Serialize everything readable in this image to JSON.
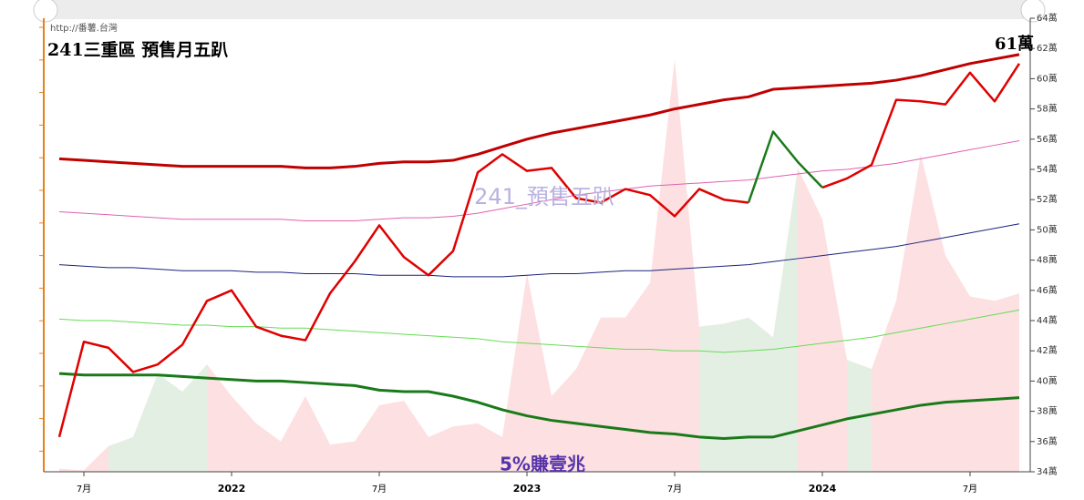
{
  "chart_data": {
    "type": "line",
    "title": "241三重區 預售月五趴",
    "annotations": [
      "http://番薯.台灣",
      "61萬",
      "241_預售五趴",
      "5%賺壹兆"
    ],
    "categories": [
      null,
      "7月",
      null,
      null,
      null,
      null,
      null,
      "2022",
      null,
      null,
      null,
      null,
      null,
      "7月",
      null,
      null,
      null,
      null,
      null,
      "2023",
      null,
      null,
      null,
      null,
      null,
      "7月",
      null,
      null,
      null,
      null,
      null,
      "2024",
      null,
      null,
      null,
      null,
      null,
      "7月",
      null,
      null
    ],
    "ylim": [
      34,
      64
    ],
    "yticks": [
      {
        "value": 34,
        "label": "34萬"
      },
      {
        "value": 36,
        "label": "36萬"
      },
      {
        "value": 38,
        "label": "38萬"
      },
      {
        "value": 40,
        "label": "40萬"
      },
      {
        "value": 42,
        "label": "42萬"
      },
      {
        "value": 44,
        "label": "44萬"
      },
      {
        "value": 46,
        "label": "46萬"
      },
      {
        "value": 48,
        "label": "48萬"
      },
      {
        "value": 50,
        "label": "50萬"
      },
      {
        "value": 52,
        "label": "52萬"
      },
      {
        "value": 54,
        "label": "54萬"
      },
      {
        "value": 56,
        "label": "56萬"
      },
      {
        "value": 58,
        "label": "58萬"
      },
      {
        "value": 60,
        "label": "60萬"
      },
      {
        "value": 62,
        "label": "62萬"
      },
      {
        "value": 64,
        "label": "64萬"
      }
    ],
    "series": [
      {
        "type": "area",
        "color": "#fde0e2",
        "values": [
          34.2,
          34.1,
          35.7,
          null,
          null,
          null,
          41.1,
          39.0,
          37.2,
          36.0,
          39.0,
          35.8,
          36.0,
          38.4,
          38.7,
          36.3,
          37.0,
          37.2,
          36.3,
          47.1,
          39.0,
          40.8,
          44.2,
          44.2,
          46.5,
          61.3,
          43.6,
          null,
          null,
          null,
          54.1,
          50.7,
          41.4,
          40.8,
          45.3,
          55.0,
          48.3,
          45.6,
          45.3,
          45.8
        ]
      },
      {
        "type": "area",
        "color": "#e4efe4",
        "values": [
          null,
          null,
          35.7,
          36.3,
          40.5,
          39.3,
          41.1,
          null,
          null,
          null,
          null,
          null,
          null,
          null,
          null,
          null,
          null,
          null,
          null,
          null,
          null,
          null,
          null,
          null,
          null,
          null,
          43.6,
          43.8,
          44.2,
          42.9,
          54.1,
          null,
          41.4,
          40.8,
          null,
          null,
          null,
          null,
          null,
          null
        ]
      },
      {
        "type": "line",
        "color": "#c00000",
        "width": 3,
        "values": [
          54.7,
          54.6,
          54.5,
          54.4,
          54.3,
          54.2,
          54.2,
          54.2,
          54.2,
          54.2,
          54.1,
          54.1,
          54.2,
          54.4,
          54.5,
          54.5,
          54.6,
          55.0,
          55.5,
          56.0,
          56.4,
          56.7,
          57.0,
          57.3,
          57.6,
          58.0,
          58.3,
          58.6,
          58.8,
          59.3,
          59.4,
          59.5,
          59.6,
          59.7,
          59.9,
          60.2,
          60.6,
          61.0,
          61.3,
          61.6
        ]
      },
      {
        "type": "line",
        "color": "#e060b0",
        "width": 1,
        "values": [
          51.2,
          51.1,
          51.0,
          50.9,
          50.8,
          50.7,
          50.7,
          50.7,
          50.7,
          50.7,
          50.6,
          50.6,
          50.6,
          50.7,
          50.8,
          50.8,
          50.9,
          51.1,
          51.4,
          51.7,
          52.0,
          52.3,
          52.5,
          52.7,
          52.9,
          53.0,
          53.1,
          53.2,
          53.3,
          53.5,
          53.7,
          53.9,
          54.0,
          54.2,
          54.4,
          54.7,
          55.0,
          55.3,
          55.6,
          55.9
        ]
      },
      {
        "type": "line",
        "color": "#1a237e",
        "width": 1,
        "values": [
          47.7,
          47.6,
          47.5,
          47.5,
          47.4,
          47.3,
          47.3,
          47.3,
          47.2,
          47.2,
          47.1,
          47.1,
          47.1,
          47.0,
          47.0,
          47.0,
          46.9,
          46.9,
          46.9,
          47.0,
          47.1,
          47.1,
          47.2,
          47.3,
          47.3,
          47.4,
          47.5,
          47.6,
          47.7,
          47.9,
          48.1,
          48.3,
          48.5,
          48.7,
          48.9,
          49.2,
          49.5,
          49.8,
          50.1,
          50.4
        ]
      },
      {
        "type": "line",
        "color": "#66dd55",
        "width": 1,
        "values": [
          44.1,
          44.0,
          44.0,
          43.9,
          43.8,
          43.7,
          43.7,
          43.6,
          43.6,
          43.5,
          43.5,
          43.4,
          43.3,
          43.2,
          43.1,
          43.0,
          42.9,
          42.8,
          42.6,
          42.5,
          42.4,
          42.3,
          42.2,
          42.1,
          42.1,
          42.0,
          42.0,
          41.9,
          42.0,
          42.1,
          42.3,
          42.5,
          42.7,
          42.9,
          43.2,
          43.5,
          43.8,
          44.1,
          44.4,
          44.7
        ]
      },
      {
        "type": "line",
        "color": "#1a7a1a",
        "width": 3,
        "values": [
          40.5,
          40.4,
          40.4,
          40.4,
          40.4,
          40.3,
          40.2,
          40.1,
          40.0,
          40.0,
          39.9,
          39.8,
          39.7,
          39.4,
          39.3,
          39.3,
          39.0,
          38.6,
          38.1,
          37.7,
          37.4,
          37.2,
          37.0,
          36.8,
          36.6,
          36.5,
          36.3,
          36.2,
          36.3,
          36.3,
          36.7,
          37.1,
          37.5,
          37.8,
          38.1,
          38.4,
          38.6,
          38.7,
          38.8,
          38.9
        ]
      },
      {
        "type": "line",
        "color": "#e00000",
        "width": 2.5,
        "values": [
          36.3,
          42.6,
          42.2,
          40.6,
          41.1,
          42.4,
          45.3,
          46.0,
          43.6,
          43.0,
          42.7,
          45.8,
          47.9,
          50.3,
          48.2,
          47.0,
          48.6,
          53.8,
          55.0,
          53.9,
          54.1,
          52.1,
          51.8,
          52.7,
          52.3,
          50.9,
          52.7,
          52.0,
          51.8,
          null,
          null,
          52.8,
          53.4,
          54.3,
          58.6,
          58.5,
          58.3,
          60.4,
          58.5,
          61.0
        ]
      },
      {
        "type": "line",
        "color": "#1a7a1a",
        "width": 2.5,
        "values": [
          null,
          null,
          null,
          null,
          null,
          null,
          null,
          null,
          null,
          null,
          null,
          null,
          null,
          null,
          null,
          null,
          null,
          null,
          null,
          null,
          null,
          null,
          null,
          null,
          null,
          null,
          null,
          null,
          51.8,
          56.5,
          54.5,
          52.8,
          null,
          null,
          null,
          null,
          null,
          null,
          null,
          null
        ]
      }
    ]
  }
}
